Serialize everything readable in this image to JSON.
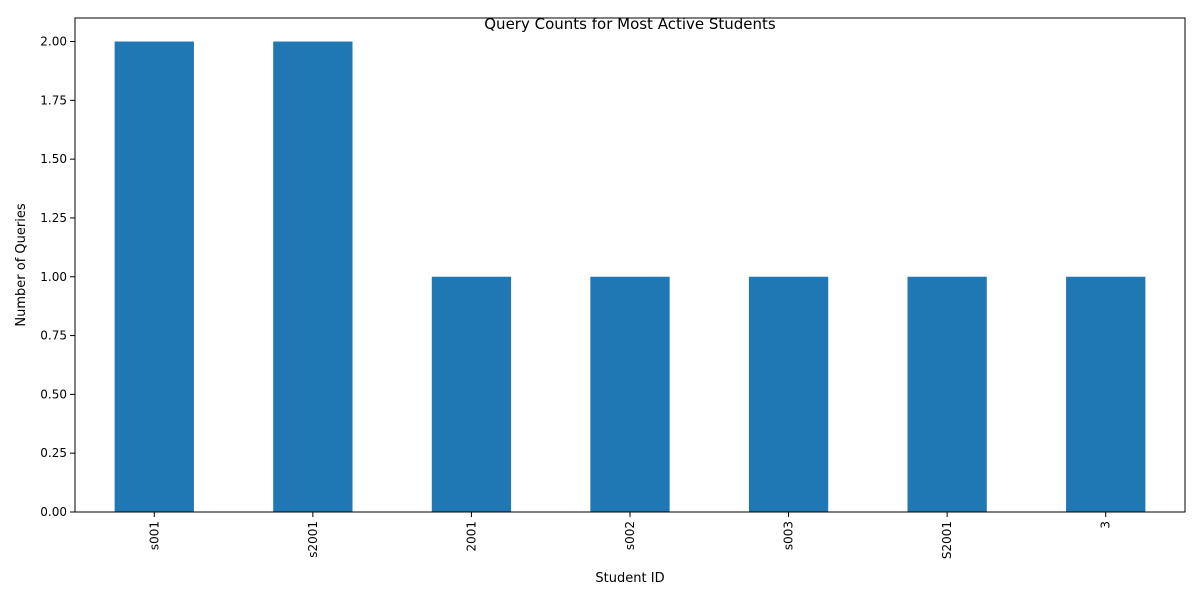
{
  "chart_data": {
    "type": "bar",
    "title": "Query Counts for Most Active Students",
    "xlabel": "Student ID",
    "ylabel": "Number of Queries",
    "categories": [
      "s001",
      "s2001",
      "2001",
      "s002",
      "s003",
      "S2001",
      "3"
    ],
    "values": [
      2,
      2,
      1,
      1,
      1,
      1,
      1
    ],
    "ylim": [
      0,
      2.1
    ],
    "yticks": [
      "0.00",
      "0.25",
      "0.50",
      "0.75",
      "1.00",
      "1.25",
      "1.50",
      "1.75",
      "2.00"
    ],
    "grid": false,
    "legend": "none",
    "bar_color": "#1f77b4"
  }
}
